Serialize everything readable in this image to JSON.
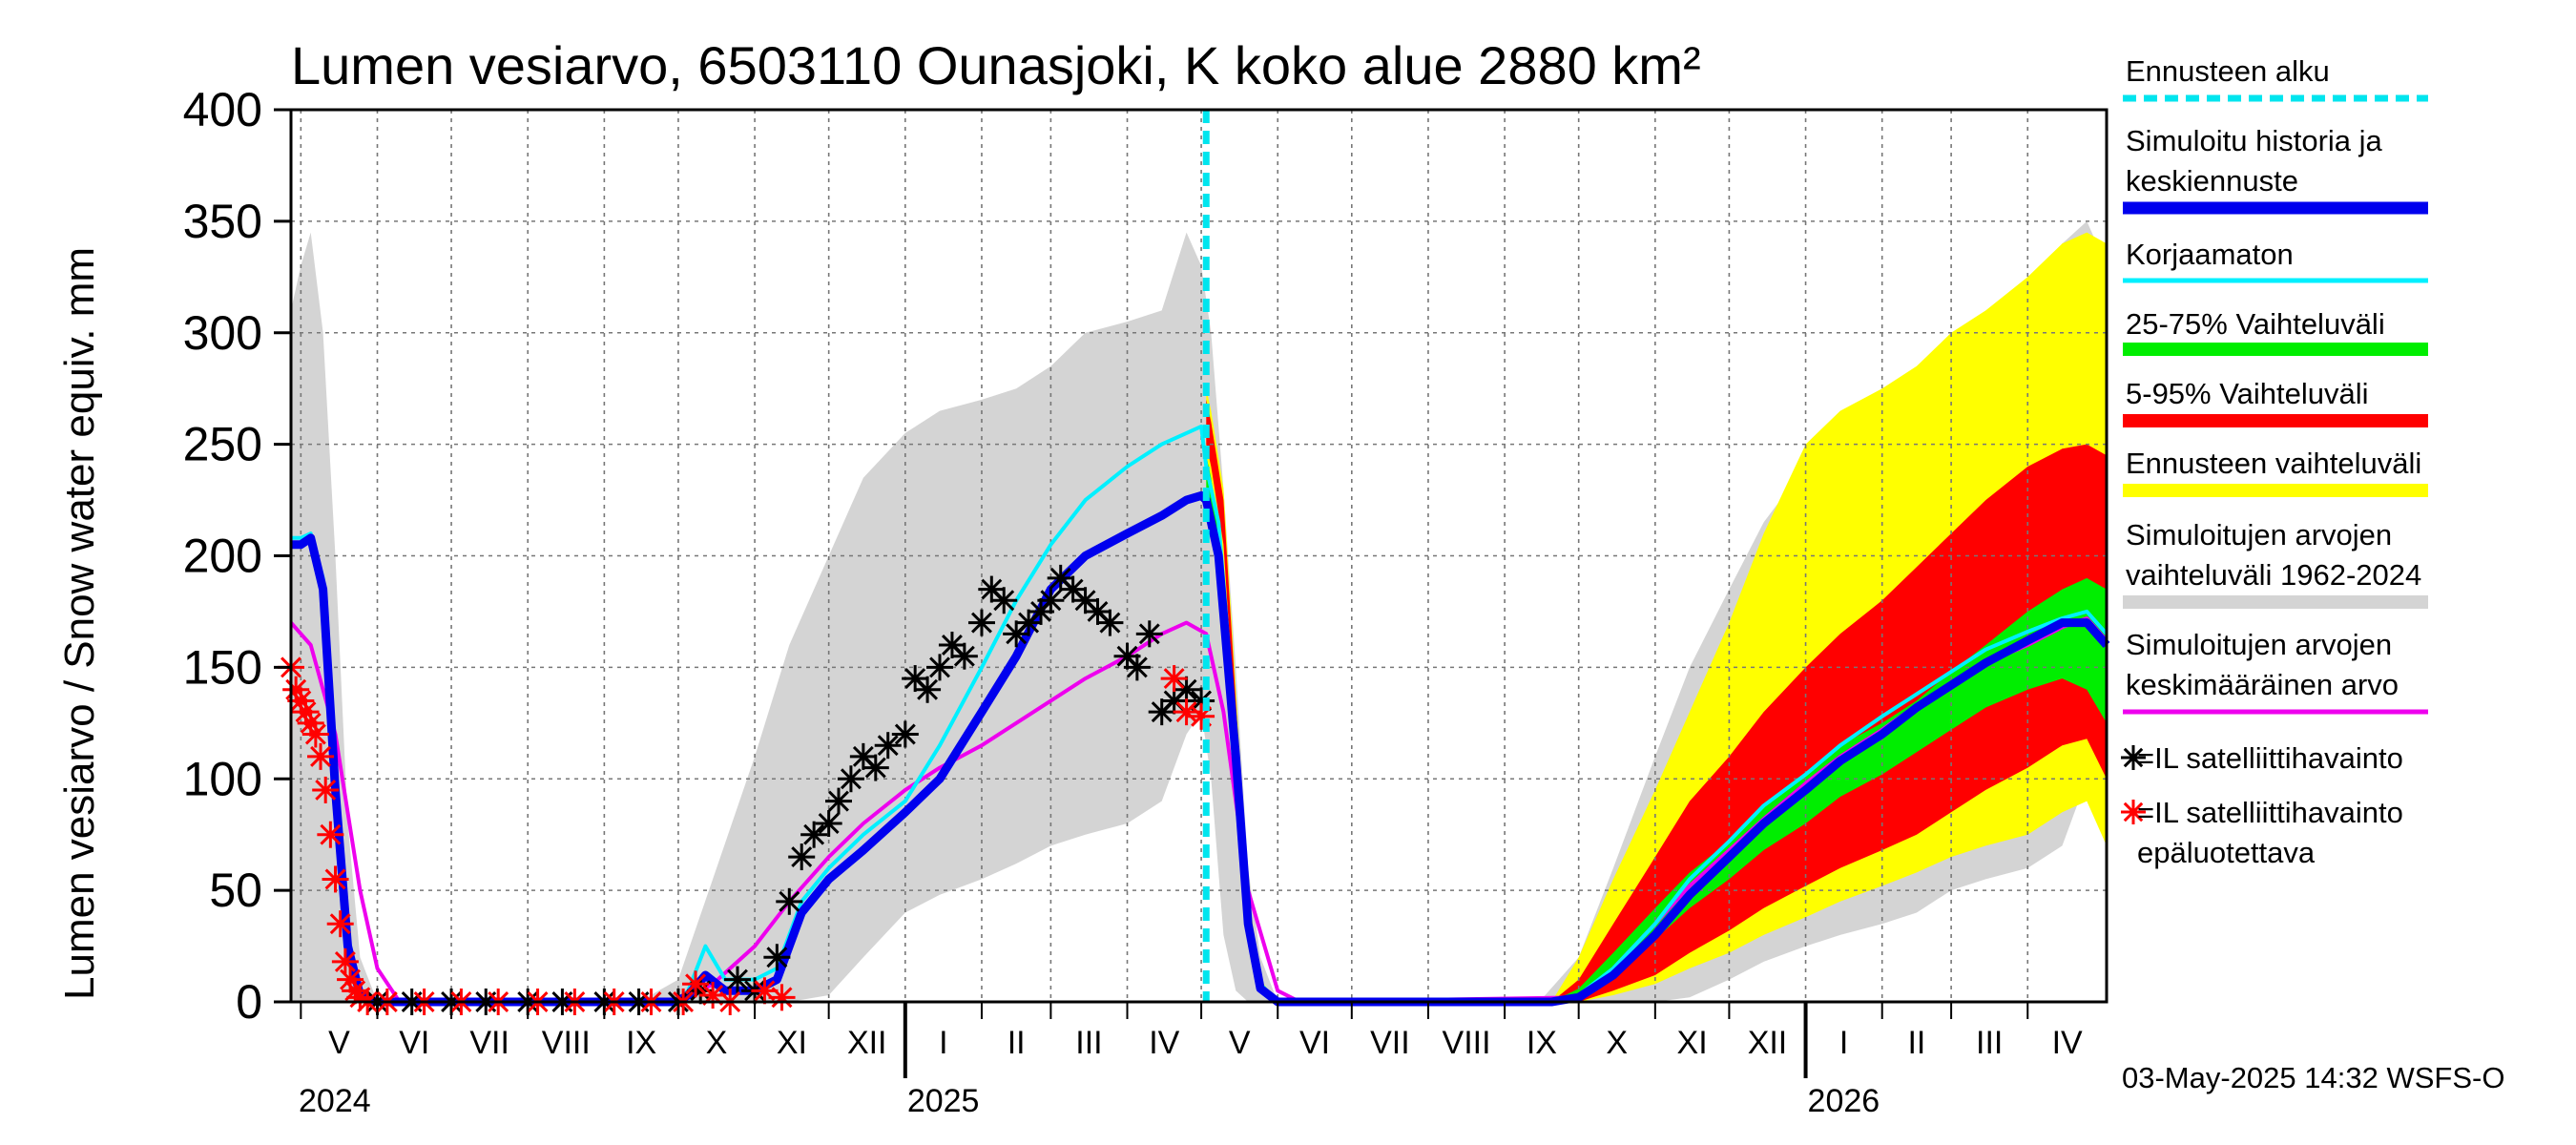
{
  "title": "Lumen vesiarvo, 6503110 Ounasjoki, K koko alue 2880 km²",
  "footer": "03-May-2025 14:32 WSFS-O",
  "colors": {
    "history": "#0000ee",
    "uncorrected": "#00f0ff",
    "p25_75": "#00ee00",
    "p5_95": "#ff0000",
    "forecast_range": "#ffff00",
    "sim_range": "#d4d4d4",
    "sim_mean": "#ee00ee",
    "obs": "#000000",
    "obs_unreliable": "#ff0000",
    "forecast_start": "#00e5ee"
  },
  "legend": {
    "forecast_start": "Ennusteen alku",
    "history_1": "Simuloitu historia ja",
    "history_2": "keskiennuste",
    "uncorrected": "Korjaamaton",
    "p25_75": "25-75% Vaihteluväli",
    "p5_95": "5-95% Vaihteluväli",
    "forecast_range": "Ennusteen vaihteluväli",
    "sim_range_1": "Simuloitujen arvojen",
    "sim_range_2": "vaihteluväli 1962-2024",
    "sim_mean_1": "Simuloitujen arvojen",
    "sim_mean_2": "keskimääräinen arvo",
    "obs": "=IL satelliittihavainto",
    "obs_unreliable_1": "=IL satelliittihavainto",
    "obs_unreliable_2": "epäluotettava"
  },
  "chart_data": {
    "type": "line",
    "title": "Lumen vesiarvo, 6503110 Ounasjoki, K koko alue 2880 km²",
    "ylabel": "Lumen vesiarvo / Snow water equiv.    mm",
    "ylim": [
      0,
      400
    ],
    "yticks": [
      0,
      50,
      100,
      150,
      200,
      250,
      300,
      350,
      400
    ],
    "xlim": [
      "2024-04-27",
      "2026-05-03"
    ],
    "forecast_start": "2025-05-03",
    "grid": true,
    "legend_position": "right",
    "months": [
      {
        "label": "V",
        "start": "2024-05-01"
      },
      {
        "label": "VI",
        "start": "2024-06-01"
      },
      {
        "label": "VII",
        "start": "2024-07-01"
      },
      {
        "label": "VIII",
        "start": "2024-08-01"
      },
      {
        "label": "IX",
        "start": "2024-09-01"
      },
      {
        "label": "X",
        "start": "2024-10-01"
      },
      {
        "label": "XI",
        "start": "2024-11-01"
      },
      {
        "label": "XII",
        "start": "2024-12-01"
      },
      {
        "label": "I",
        "start": "2025-01-01"
      },
      {
        "label": "II",
        "start": "2025-02-01"
      },
      {
        "label": "III",
        "start": "2025-03-01"
      },
      {
        "label": "IV",
        "start": "2025-04-01"
      },
      {
        "label": "V",
        "start": "2025-05-01"
      },
      {
        "label": "VI",
        "start": "2025-06-01"
      },
      {
        "label": "VII",
        "start": "2025-07-01"
      },
      {
        "label": "VIII",
        "start": "2025-08-01"
      },
      {
        "label": "IX",
        "start": "2025-09-01"
      },
      {
        "label": "X",
        "start": "2025-10-01"
      },
      {
        "label": "XI",
        "start": "2025-11-01"
      },
      {
        "label": "XII",
        "start": "2025-12-01"
      },
      {
        "label": "I",
        "start": "2026-01-01"
      },
      {
        "label": "II",
        "start": "2026-02-01"
      },
      {
        "label": "III",
        "start": "2026-03-01"
      },
      {
        "label": "IV",
        "start": "2026-04-01"
      }
    ],
    "years": [
      {
        "label": "2024",
        "date": "2024-04-27"
      },
      {
        "label": "2025",
        "date": "2025-01-01"
      },
      {
        "label": "2026",
        "date": "2026-01-01"
      }
    ],
    "series": [
      {
        "name": "Simuloitujen arvojen vaihteluväli 1962-2024",
        "kind": "band",
        "x": [
          "2024-04-27",
          "2024-05-01",
          "2024-05-05",
          "2024-05-10",
          "2024-05-15",
          "2024-05-20",
          "2024-05-25",
          "2024-06-01",
          "2024-09-15",
          "2024-10-01",
          "2024-10-15",
          "2024-11-01",
          "2024-11-15",
          "2024-12-01",
          "2024-12-15",
          "2025-01-01",
          "2025-01-15",
          "2025-02-01",
          "2025-02-15",
          "2025-03-01",
          "2025-03-15",
          "2025-04-01",
          "2025-04-15",
          "2025-04-25",
          "2025-05-01",
          "2025-05-05",
          "2025-05-10",
          "2025-05-15",
          "2025-05-20",
          "2025-05-25",
          "2025-06-01",
          "2025-06-10",
          "2025-09-15",
          "2025-10-01",
          "2025-10-15",
          "2025-11-01",
          "2025-11-15",
          "2025-12-01",
          "2025-12-15",
          "2026-01-01",
          "2026-01-15",
          "2026-02-01",
          "2026-02-15",
          "2026-03-01",
          "2026-03-15",
          "2026-04-01",
          "2026-04-15",
          "2026-04-25",
          "2026-05-03"
        ],
        "low": [
          0,
          0,
          0,
          0,
          0,
          0,
          0,
          0,
          0,
          0,
          0,
          0,
          0,
          3,
          20,
          40,
          48,
          55,
          62,
          70,
          75,
          80,
          90,
          120,
          130,
          100,
          30,
          5,
          0,
          0,
          0,
          0,
          0,
          0,
          0,
          0,
          2,
          10,
          18,
          25,
          30,
          35,
          40,
          50,
          55,
          60,
          70,
          100,
          70
        ],
        "high": [
          310,
          330,
          345,
          300,
          200,
          80,
          20,
          0,
          0,
          10,
          55,
          110,
          160,
          200,
          235,
          255,
          265,
          270,
          275,
          285,
          300,
          305,
          310,
          345,
          330,
          300,
          230,
          150,
          60,
          20,
          0,
          0,
          0,
          20,
          60,
          110,
          150,
          185,
          215,
          240,
          255,
          265,
          275,
          285,
          300,
          320,
          340,
          350,
          330
        ]
      },
      {
        "name": "Ennusteen vaihteluväli",
        "kind": "band",
        "x": [
          "2025-05-03",
          "2025-05-05",
          "2025-05-10",
          "2025-05-15",
          "2025-05-20",
          "2025-05-25",
          "2025-06-01",
          "2025-09-20",
          "2025-10-01",
          "2025-10-15",
          "2025-11-01",
          "2025-11-15",
          "2025-12-01",
          "2025-12-15",
          "2026-01-01",
          "2026-01-15",
          "2026-02-01",
          "2026-02-15",
          "2026-03-01",
          "2026-03-15",
          "2026-04-01",
          "2026-04-15",
          "2026-04-25",
          "2026-05-03"
        ],
        "low": [
          240,
          230,
          200,
          110,
          30,
          5,
          0,
          0,
          0,
          3,
          8,
          15,
          22,
          30,
          38,
          45,
          52,
          58,
          65,
          70,
          75,
          85,
          90,
          70
        ],
        "high": [
          275,
          265,
          230,
          140,
          50,
          10,
          0,
          0,
          20,
          55,
          95,
          130,
          170,
          210,
          250,
          265,
          275,
          285,
          300,
          310,
          325,
          340,
          345,
          340
        ]
      },
      {
        "name": "5-95% Vaihteluväli",
        "kind": "band",
        "x": [
          "2025-05-03",
          "2025-05-05",
          "2025-05-10",
          "2025-05-15",
          "2025-05-20",
          "2025-05-25",
          "2025-06-01",
          "2025-09-20",
          "2025-10-01",
          "2025-10-15",
          "2025-11-01",
          "2025-11-15",
          "2025-12-01",
          "2025-12-15",
          "2026-01-01",
          "2026-01-15",
          "2026-02-01",
          "2026-02-15",
          "2026-03-01",
          "2026-03-15",
          "2026-04-01",
          "2026-04-15",
          "2026-04-25",
          "2026-05-03"
        ],
        "low": [
          250,
          240,
          205,
          120,
          35,
          6,
          0,
          0,
          0,
          5,
          12,
          22,
          32,
          42,
          52,
          60,
          68,
          75,
          85,
          95,
          105,
          115,
          118,
          100
        ],
        "high": [
          270,
          260,
          225,
          135,
          45,
          8,
          0,
          0,
          10,
          35,
          65,
          90,
          110,
          130,
          150,
          165,
          180,
          195,
          210,
          225,
          240,
          248,
          250,
          245
        ]
      },
      {
        "name": "25-75% Vaihteluväli",
        "kind": "band",
        "x": [
          "2025-05-03",
          "2025-05-05",
          "2025-05-10",
          "2025-05-15",
          "2025-05-20",
          "2025-05-25",
          "2025-06-01",
          "2025-09-20",
          "2025-10-01",
          "2025-10-15",
          "2025-11-01",
          "2025-11-15",
          "2025-12-01",
          "2025-12-15",
          "2026-01-01",
          "2026-01-15",
          "2026-02-01",
          "2026-02-15",
          "2026-03-01",
          "2026-03-15",
          "2026-04-01",
          "2026-04-15",
          "2026-04-25",
          "2026-05-03"
        ],
        "low": [
          225,
          215,
          175,
          95,
          25,
          4,
          0,
          0,
          2,
          12,
          28,
          42,
          55,
          68,
          80,
          92,
          102,
          112,
          122,
          132,
          140,
          145,
          140,
          125
        ],
        "high": [
          245,
          235,
          195,
          110,
          32,
          6,
          0,
          0,
          6,
          22,
          42,
          58,
          72,
          88,
          102,
          115,
          125,
          135,
          148,
          160,
          175,
          185,
          190,
          185
        ]
      },
      {
        "name": "Simuloitujen arvojen keskimääräinen arvo",
        "kind": "line",
        "x": [
          "2024-04-27",
          "2024-05-05",
          "2024-05-15",
          "2024-05-25",
          "2024-06-01",
          "2024-06-10",
          "2024-10-01",
          "2024-10-15",
          "2024-11-01",
          "2024-11-15",
          "2024-12-01",
          "2024-12-15",
          "2025-01-01",
          "2025-01-15",
          "2025-02-01",
          "2025-02-15",
          "2025-03-01",
          "2025-03-15",
          "2025-04-01",
          "2025-04-15",
          "2025-04-25",
          "2025-05-03",
          "2025-05-10",
          "2025-05-20",
          "2025-06-01",
          "2025-06-10",
          "2025-10-01",
          "2025-10-15",
          "2025-11-01",
          "2025-11-15",
          "2025-12-01",
          "2025-12-15",
          "2026-01-01",
          "2026-01-15",
          "2026-02-01",
          "2026-02-15",
          "2026-03-01",
          "2026-03-15",
          "2026-04-01",
          "2026-04-15",
          "2026-04-25",
          "2026-05-03"
        ],
        "y": [
          170,
          160,
          120,
          50,
          15,
          0,
          0,
          8,
          25,
          45,
          65,
          80,
          95,
          105,
          115,
          125,
          135,
          145,
          155,
          165,
          170,
          165,
          130,
          50,
          5,
          0,
          2,
          15,
          35,
          52,
          68,
          82,
          98,
          110,
          122,
          133,
          143,
          152,
          160,
          168,
          172,
          162
        ]
      },
      {
        "name": "Korjaamaton",
        "kind": "line",
        "x": [
          "2024-04-27",
          "2024-05-01",
          "2024-05-05",
          "2024-05-10",
          "2024-05-15",
          "2024-05-20",
          "2024-05-25",
          "2024-06-01",
          "2024-09-30",
          "2024-10-05",
          "2024-10-12",
          "2024-10-20",
          "2024-11-01",
          "2024-11-10",
          "2024-11-20",
          "2024-12-01",
          "2024-12-15",
          "2025-01-01",
          "2025-01-15",
          "2025-02-01",
          "2025-02-15",
          "2025-03-01",
          "2025-03-15",
          "2025-04-01",
          "2025-04-15",
          "2025-04-25",
          "2025-05-01",
          "2025-05-03",
          "2025-05-08",
          "2025-05-15",
          "2025-05-20",
          "2025-05-25",
          "2025-06-01",
          "2025-09-20",
          "2025-10-01",
          "2025-10-15",
          "2025-11-01",
          "2025-11-15",
          "2025-12-01",
          "2025-12-15",
          "2026-01-01",
          "2026-01-15",
          "2026-02-01",
          "2026-02-15",
          "2026-03-01",
          "2026-03-15",
          "2026-04-01",
          "2026-04-15",
          "2026-04-25",
          "2026-05-03"
        ],
        "y": [
          208,
          208,
          210,
          190,
          100,
          30,
          5,
          0,
          0,
          5,
          25,
          10,
          10,
          15,
          45,
          60,
          75,
          90,
          115,
          150,
          180,
          205,
          225,
          240,
          250,
          255,
          258,
          240,
          215,
          120,
          40,
          8,
          0,
          0,
          3,
          15,
          35,
          55,
          72,
          88,
          102,
          115,
          128,
          138,
          148,
          158,
          166,
          172,
          175,
          165
        ]
      },
      {
        "name": "Simuloitu historia ja keskiennuste",
        "kind": "line",
        "x": [
          "2024-04-27",
          "2024-05-01",
          "2024-05-05",
          "2024-05-10",
          "2024-05-15",
          "2024-05-20",
          "2024-05-25",
          "2024-06-01",
          "2024-09-30",
          "2024-10-05",
          "2024-10-12",
          "2024-10-20",
          "2024-11-01",
          "2024-11-10",
          "2024-11-20",
          "2024-12-01",
          "2024-12-15",
          "2025-01-01",
          "2025-01-15",
          "2025-02-01",
          "2025-02-15",
          "2025-03-01",
          "2025-03-15",
          "2025-04-01",
          "2025-04-15",
          "2025-04-25",
          "2025-05-01",
          "2025-05-03",
          "2025-05-08",
          "2025-05-15",
          "2025-05-20",
          "2025-05-25",
          "2025-06-01",
          "2025-09-20",
          "2025-10-01",
          "2025-10-15",
          "2025-11-01",
          "2025-11-15",
          "2025-12-01",
          "2025-12-15",
          "2026-01-01",
          "2026-01-15",
          "2026-02-01",
          "2026-02-15",
          "2026-03-01",
          "2026-03-15",
          "2026-04-01",
          "2026-04-15",
          "2026-04-25",
          "2026-05-03"
        ],
        "y": [
          205,
          205,
          208,
          185,
          95,
          25,
          3,
          0,
          0,
          3,
          12,
          5,
          5,
          10,
          40,
          55,
          68,
          85,
          100,
          130,
          155,
          185,
          200,
          210,
          218,
          225,
          227,
          225,
          200,
          110,
          35,
          6,
          0,
          0,
          2,
          12,
          30,
          48,
          65,
          80,
          95,
          108,
          120,
          132,
          142,
          152,
          162,
          170,
          170,
          160
        ]
      },
      {
        "name": "=IL satelliittihavainto",
        "kind": "scatter",
        "x": [
          "2024-06-01",
          "2024-06-15",
          "2024-07-01",
          "2024-07-15",
          "2024-08-01",
          "2024-08-15",
          "2024-09-01",
          "2024-09-15",
          "2024-10-01",
          "2024-10-10",
          "2024-10-25",
          "2024-11-01",
          "2024-11-10",
          "2024-11-15",
          "2024-11-20",
          "2024-11-25",
          "2024-12-01",
          "2024-12-05",
          "2024-12-10",
          "2024-12-15",
          "2024-12-20",
          "2024-12-25",
          "2025-01-01",
          "2025-01-05",
          "2025-01-10",
          "2025-01-15",
          "2025-01-20",
          "2025-01-25",
          "2025-02-01",
          "2025-02-05",
          "2025-02-10",
          "2025-02-15",
          "2025-02-20",
          "2025-02-25",
          "2025-03-01",
          "2025-03-05",
          "2025-03-10",
          "2025-03-15",
          "2025-03-20",
          "2025-03-25",
          "2025-04-01",
          "2025-04-05",
          "2025-04-10",
          "2025-04-15",
          "2025-04-20",
          "2025-04-25",
          "2025-05-01"
        ],
        "y": [
          0,
          0,
          0,
          0,
          0,
          0,
          0,
          0,
          0,
          5,
          10,
          5,
          20,
          45,
          65,
          75,
          80,
          90,
          100,
          110,
          105,
          115,
          120,
          145,
          140,
          150,
          160,
          155,
          170,
          185,
          180,
          165,
          170,
          175,
          180,
          190,
          185,
          180,
          175,
          170,
          155,
          150,
          165,
          130,
          135,
          140,
          135
        ]
      },
      {
        "name": "=IL satelliittihavainto epäluotettava",
        "kind": "scatter",
        "x": [
          "2024-04-27",
          "2024-04-29",
          "2024-05-01",
          "2024-05-03",
          "2024-05-05",
          "2024-05-07",
          "2024-05-09",
          "2024-05-11",
          "2024-05-13",
          "2024-05-15",
          "2024-05-17",
          "2024-05-19",
          "2024-05-21",
          "2024-05-23",
          "2024-05-25",
          "2024-05-28",
          "2024-06-05",
          "2024-06-20",
          "2024-07-05",
          "2024-07-20",
          "2024-08-05",
          "2024-08-20",
          "2024-09-05",
          "2024-09-20",
          "2024-10-03",
          "2024-10-08",
          "2024-10-15",
          "2024-10-22",
          "2024-11-05",
          "2024-11-12",
          "2025-04-20",
          "2025-04-25",
          "2025-05-01"
        ],
        "y": [
          150,
          140,
          135,
          130,
          125,
          120,
          110,
          95,
          75,
          55,
          35,
          18,
          10,
          5,
          2,
          0,
          0,
          0,
          0,
          0,
          0,
          0,
          0,
          0,
          0,
          8,
          3,
          0,
          5,
          2,
          145,
          130,
          128
        ]
      }
    ]
  }
}
